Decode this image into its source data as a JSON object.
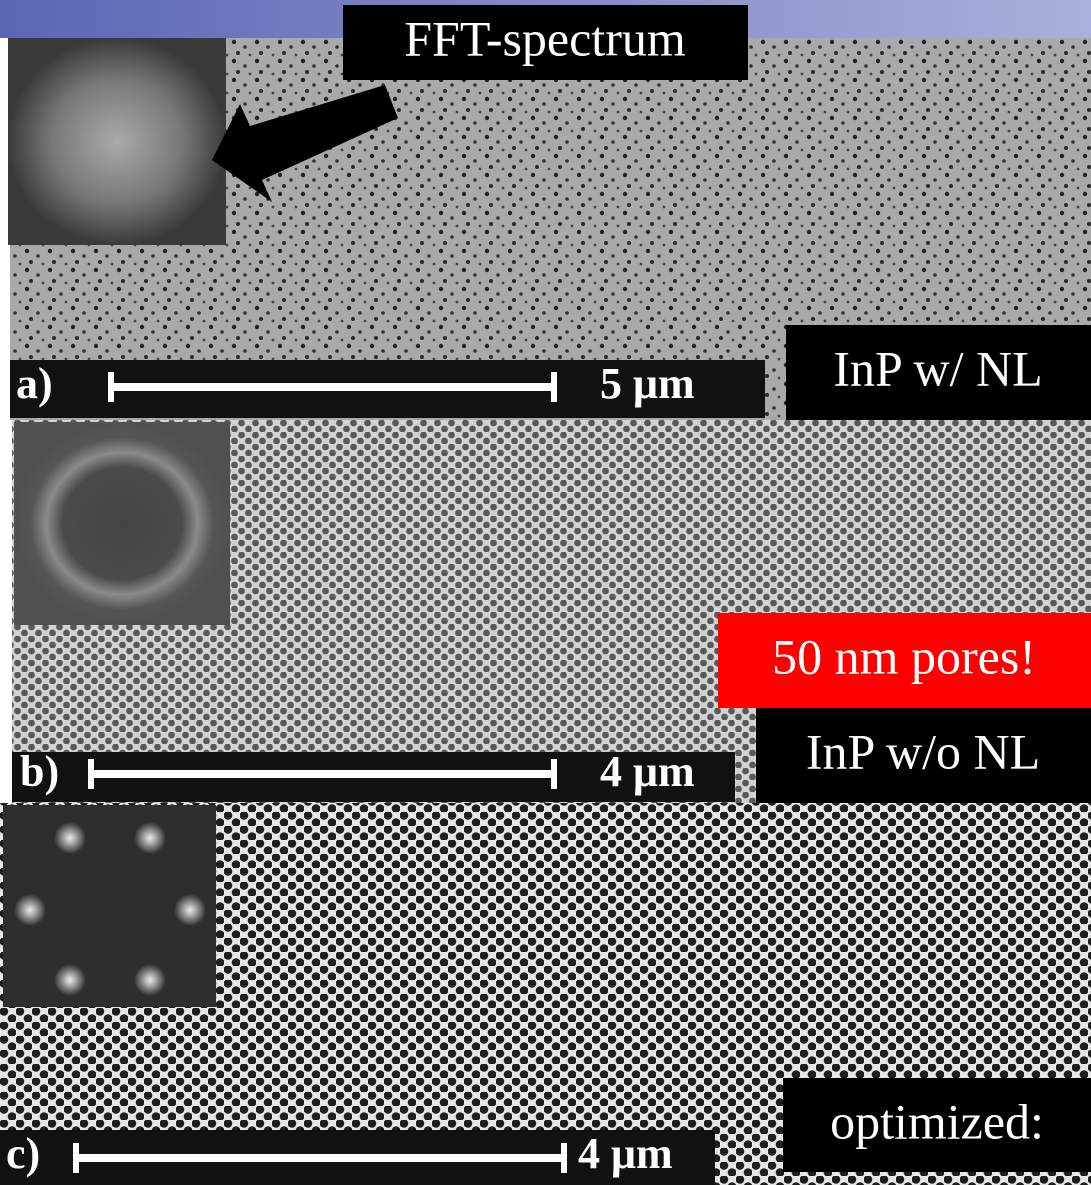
{
  "annotation": "FFT-spectrum",
  "panels": [
    {
      "label": "a)",
      "scale": "5 μm",
      "caption": "InP w/ NL"
    },
    {
      "label": "b)",
      "scale": "4 μm",
      "caption": "InP w/o NL",
      "highlight": "50 nm pores!"
    },
    {
      "label": "c)",
      "scale": "4 μm",
      "caption": "optimized:"
    }
  ]
}
